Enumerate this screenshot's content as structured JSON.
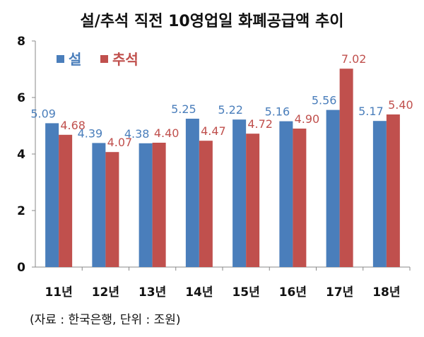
{
  "chart_data": {
    "type": "bar",
    "title": "설/추석 직전 10영업일 화폐공급액 추이",
    "categories": [
      "11년",
      "12년",
      "13년",
      "14년",
      "15년",
      "16년",
      "17년",
      "18년"
    ],
    "series": [
      {
        "name": "설",
        "color": "#4a7ebb",
        "values": [
          5.09,
          4.39,
          4.38,
          5.25,
          5.22,
          5.16,
          5.56,
          5.17
        ]
      },
      {
        "name": "추석",
        "color": "#c0504d",
        "values": [
          4.68,
          4.07,
          4.4,
          4.47,
          4.72,
          4.9,
          7.02,
          5.4
        ]
      }
    ],
    "y_ticks": [
      "0",
      "2",
      "4",
      "6",
      "8"
    ],
    "ylim": [
      0,
      8
    ],
    "legend_position": "top-left",
    "grid": false,
    "source_note": "(자료 : 한국은행, 단위 : 조원)"
  }
}
